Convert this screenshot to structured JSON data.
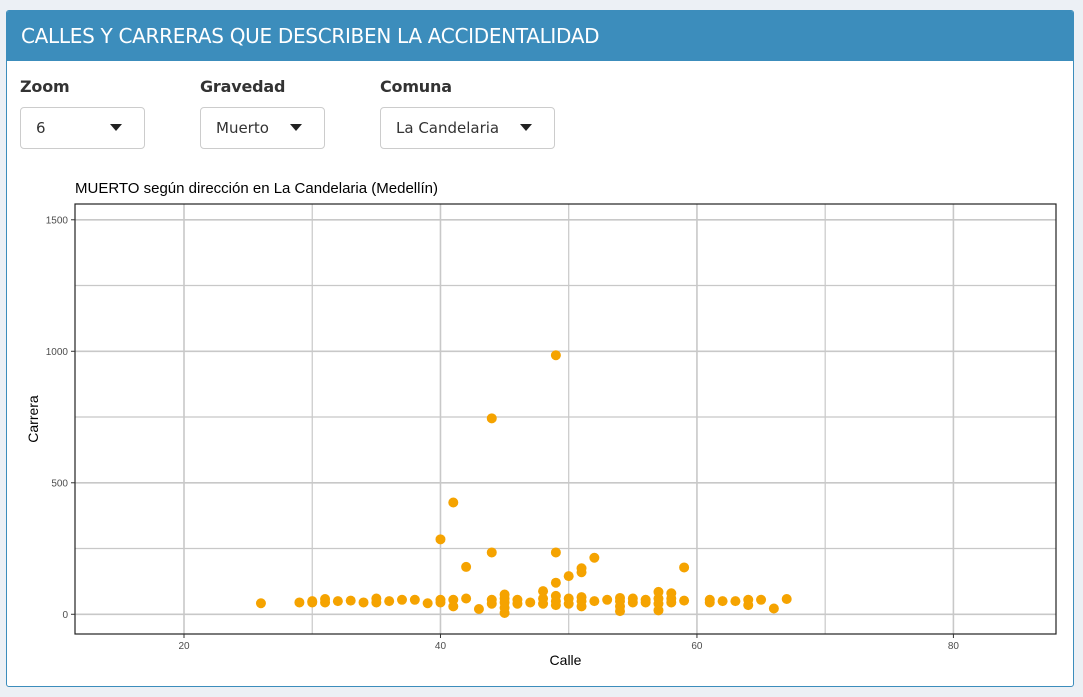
{
  "header": {
    "title": "CALLES Y CARRERAS QUE DESCRIBEN LA ACCIDENTALIDAD"
  },
  "filters": {
    "zoom": {
      "label": "Zoom",
      "value": "6"
    },
    "gravedad": {
      "label": "Gravedad",
      "value": "Muerto"
    },
    "comuna": {
      "label": "Comuna",
      "value": "La Candelaria"
    }
  },
  "colors": {
    "header": "#3c8dbc",
    "points": "#f5a300",
    "grid": "#c8c8c8"
  },
  "chart_data": {
    "type": "scatter",
    "title": "MUERTO según dirección en La Candelaria (Medellín)",
    "xlabel": "Calle",
    "ylabel": "Carrera",
    "xlim": [
      11.5,
      88
    ],
    "ylim": [
      -75,
      1560
    ],
    "xticks": [
      20,
      40,
      60,
      80
    ],
    "yticks": [
      0,
      500,
      1000,
      1500
    ],
    "xticklabels": [
      "20",
      "40",
      "60",
      "80"
    ],
    "yticklabels": [
      "0",
      "500",
      "1000",
      "1500"
    ],
    "grid": true,
    "legend": "none",
    "series": [
      {
        "points": [
          [
            26,
            42
          ],
          [
            29,
            45
          ],
          [
            30,
            45
          ],
          [
            30,
            50
          ],
          [
            31,
            45
          ],
          [
            31,
            58
          ],
          [
            32,
            50
          ],
          [
            33,
            52
          ],
          [
            34,
            45
          ],
          [
            35,
            45
          ],
          [
            35,
            60
          ],
          [
            36,
            50
          ],
          [
            37,
            55
          ],
          [
            38,
            55
          ],
          [
            39,
            42
          ],
          [
            40,
            45
          ],
          [
            40,
            55
          ],
          [
            40,
            285
          ],
          [
            41,
            30
          ],
          [
            41,
            55
          ],
          [
            41,
            425
          ],
          [
            42,
            60
          ],
          [
            42,
            180
          ],
          [
            43,
            20
          ],
          [
            44,
            40
          ],
          [
            44,
            55
          ],
          [
            44,
            235
          ],
          [
            44,
            745
          ],
          [
            45,
            5
          ],
          [
            45,
            25
          ],
          [
            45,
            45
          ],
          [
            45,
            60
          ],
          [
            45,
            75
          ],
          [
            46,
            40
          ],
          [
            46,
            55
          ],
          [
            47,
            45
          ],
          [
            48,
            40
          ],
          [
            48,
            60
          ],
          [
            48,
            88
          ],
          [
            49,
            35
          ],
          [
            49,
            50
          ],
          [
            49,
            70
          ],
          [
            49,
            120
          ],
          [
            49,
            235
          ],
          [
            49,
            985
          ],
          [
            50,
            40
          ],
          [
            50,
            60
          ],
          [
            50,
            145
          ],
          [
            51,
            30
          ],
          [
            51,
            50
          ],
          [
            51,
            65
          ],
          [
            51,
            160
          ],
          [
            51,
            175
          ],
          [
            52,
            50
          ],
          [
            52,
            215
          ],
          [
            53,
            55
          ],
          [
            54,
            12
          ],
          [
            54,
            30
          ],
          [
            54,
            50
          ],
          [
            54,
            62
          ],
          [
            55,
            45
          ],
          [
            55,
            60
          ],
          [
            56,
            45
          ],
          [
            56,
            55
          ],
          [
            57,
            15
          ],
          [
            57,
            40
          ],
          [
            57,
            60
          ],
          [
            57,
            85
          ],
          [
            58,
            45
          ],
          [
            58,
            60
          ],
          [
            58,
            80
          ],
          [
            59,
            52
          ],
          [
            59,
            178
          ],
          [
            61,
            45
          ],
          [
            61,
            55
          ],
          [
            62,
            50
          ],
          [
            63,
            50
          ],
          [
            64,
            35
          ],
          [
            64,
            55
          ],
          [
            65,
            55
          ],
          [
            66,
            22
          ],
          [
            67,
            58
          ]
        ]
      }
    ]
  }
}
